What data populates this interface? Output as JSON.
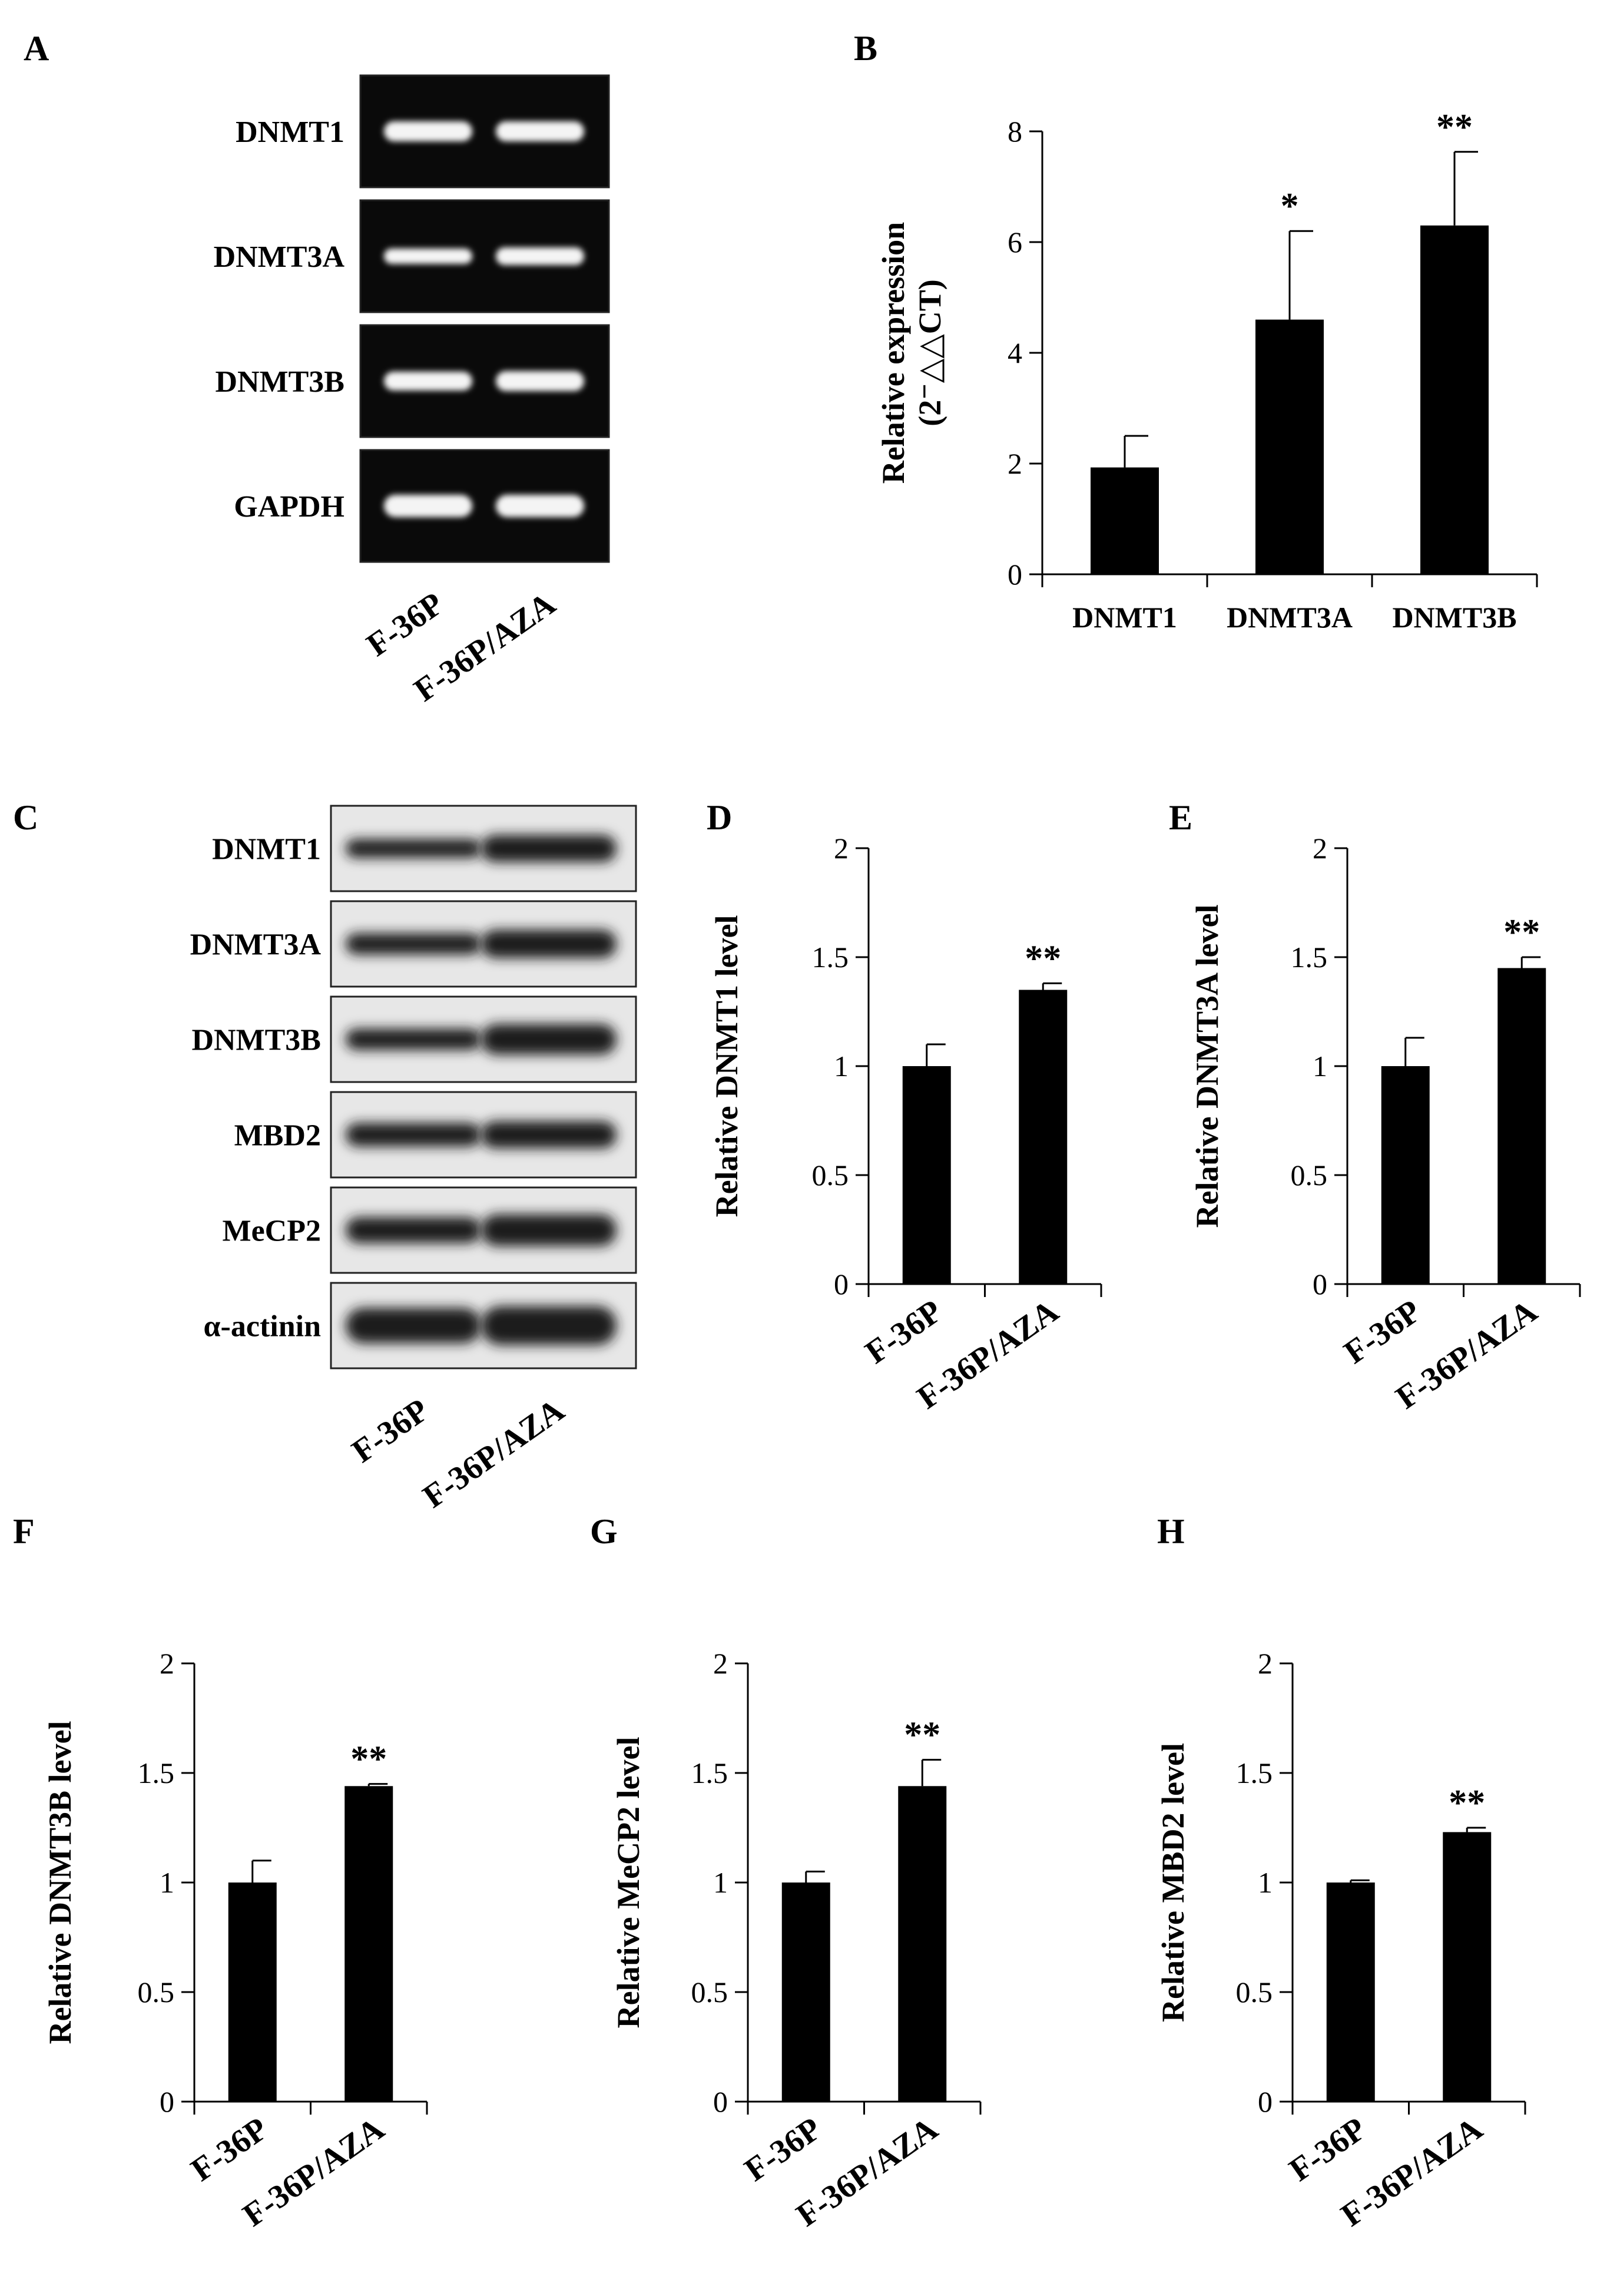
{
  "chart_data": [
    {
      "panel": "A",
      "type": "gel",
      "rows": [
        "DNMT1",
        "DNMT3A",
        "DNMT3B",
        "GAPDH"
      ],
      "lanes": [
        "F-36P",
        "F-36P/AZA"
      ]
    },
    {
      "panel": "B",
      "type": "bar",
      "categories": [
        "DNMT1",
        "DNMT3A",
        "DNMT3B"
      ],
      "values": [
        1.93,
        4.6,
        6.3
      ],
      "errors": [
        0.57,
        1.6,
        1.33
      ],
      "significance": [
        "",
        "*",
        "**"
      ],
      "ylabel": "Relative expression",
      "ylabel2": "(2⁻△△CT)",
      "ylim": [
        0,
        8
      ],
      "yticks": [
        0,
        2,
        4,
        6,
        8
      ]
    },
    {
      "panel": "C",
      "type": "western-blot",
      "rows": [
        "DNMT1",
        "DNMT3A",
        "DNMT3B",
        "MBD2",
        "MeCP2",
        "α-actinin"
      ],
      "lanes": [
        "F-36P",
        "F-36P/AZA"
      ]
    },
    {
      "panel": "D",
      "type": "bar",
      "categories": [
        "F-36P",
        "F-36P/AZA"
      ],
      "values": [
        1.0,
        1.35
      ],
      "errors": [
        0.1,
        0.03
      ],
      "significance": [
        "",
        "**"
      ],
      "ylabel": "Relative DNMT1 level",
      "ylim": [
        0,
        2
      ],
      "yticks": [
        "0",
        "0.5",
        "1",
        "1.5",
        "2"
      ]
    },
    {
      "panel": "E",
      "type": "bar",
      "categories": [
        "F-36P",
        "F-36P/AZA"
      ],
      "values": [
        1.0,
        1.45
      ],
      "errors": [
        0.13,
        0.05
      ],
      "significance": [
        "",
        "**"
      ],
      "ylabel": "Relative DNMT3A level",
      "ylim": [
        0,
        2
      ],
      "yticks": [
        "0",
        "0.5",
        "1",
        "1.5",
        "2"
      ]
    },
    {
      "panel": "F",
      "type": "bar",
      "categories": [
        "F-36P",
        "F-36P/AZA"
      ],
      "values": [
        1.0,
        1.44
      ],
      "errors": [
        0.1,
        0.01
      ],
      "significance": [
        "",
        "**"
      ],
      "ylabel": "Relative DNMT3B level",
      "ylim": [
        0,
        2
      ],
      "yticks": [
        "0",
        "0.5",
        "1",
        "1.5",
        "2"
      ]
    },
    {
      "panel": "G",
      "type": "bar",
      "categories": [
        "F-36P",
        "F-36P/AZA"
      ],
      "values": [
        1.0,
        1.44
      ],
      "errors": [
        0.05,
        0.12
      ],
      "significance": [
        "",
        "**"
      ],
      "ylabel": "Relative MeCP2 level",
      "ylim": [
        0,
        2
      ],
      "yticks": [
        "0",
        "0.5",
        "1",
        "1.5",
        "2"
      ]
    },
    {
      "panel": "H",
      "type": "bar",
      "categories": [
        "F-36P",
        "F-36P/AZA"
      ],
      "values": [
        1.0,
        1.23
      ],
      "errors": [
        0.01,
        0.02
      ],
      "significance": [
        "",
        "**"
      ],
      "ylabel": "Relative MBD2 level",
      "ylim": [
        0,
        2
      ],
      "yticks": [
        "0",
        "0.5",
        "1",
        "1.5",
        "2"
      ]
    }
  ],
  "colors": {
    "bar": "#000000",
    "gel_bg": "#0a0a0a",
    "gel_band": "#f4f4f4",
    "blot_bg": "#e7e7e7",
    "blot_band": "#1a1a1a"
  }
}
